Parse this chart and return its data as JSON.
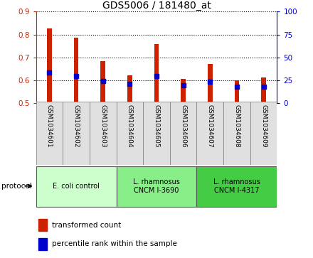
{
  "title": "GDS5006 / 181480_at",
  "samples": [
    "GSM1034601",
    "GSM1034602",
    "GSM1034603",
    "GSM1034604",
    "GSM1034605",
    "GSM1034606",
    "GSM1034607",
    "GSM1034608",
    "GSM1034609"
  ],
  "transformed_count": [
    0.825,
    0.787,
    0.685,
    0.623,
    0.758,
    0.607,
    0.672,
    0.6,
    0.613
  ],
  "percentile_rank": [
    0.635,
    0.62,
    0.596,
    0.585,
    0.62,
    0.578,
    0.593,
    0.572,
    0.573
  ],
  "ylim": [
    0.5,
    0.9
  ],
  "yticks": [
    0.5,
    0.6,
    0.7,
    0.8,
    0.9
  ],
  "y2ticks": [
    0,
    25,
    50,
    75,
    100
  ],
  "bar_color": "#cc2200",
  "dot_color": "#0000cc",
  "bar_width": 0.18,
  "groups": [
    {
      "label": "E. coli control",
      "start": 0,
      "end": 3,
      "color": "#ccffcc"
    },
    {
      "label": "L. rhamnosus\nCNCM I-3690",
      "start": 3,
      "end": 6,
      "color": "#88ee88"
    },
    {
      "label": "L. rhamnosus\nCNCM I-4317",
      "start": 6,
      "end": 9,
      "color": "#44cc44"
    }
  ],
  "protocol_label": "protocol",
  "legend_items": [
    {
      "color": "#cc2200",
      "label": "transformed count"
    },
    {
      "color": "#0000cc",
      "label": "percentile rank within the sample"
    }
  ],
  "title_fontsize": 10,
  "tick_fontsize": 7.5,
  "label_color_left": "#cc2200",
  "label_color_right": "#0000cc",
  "grid_color": "#000000"
}
